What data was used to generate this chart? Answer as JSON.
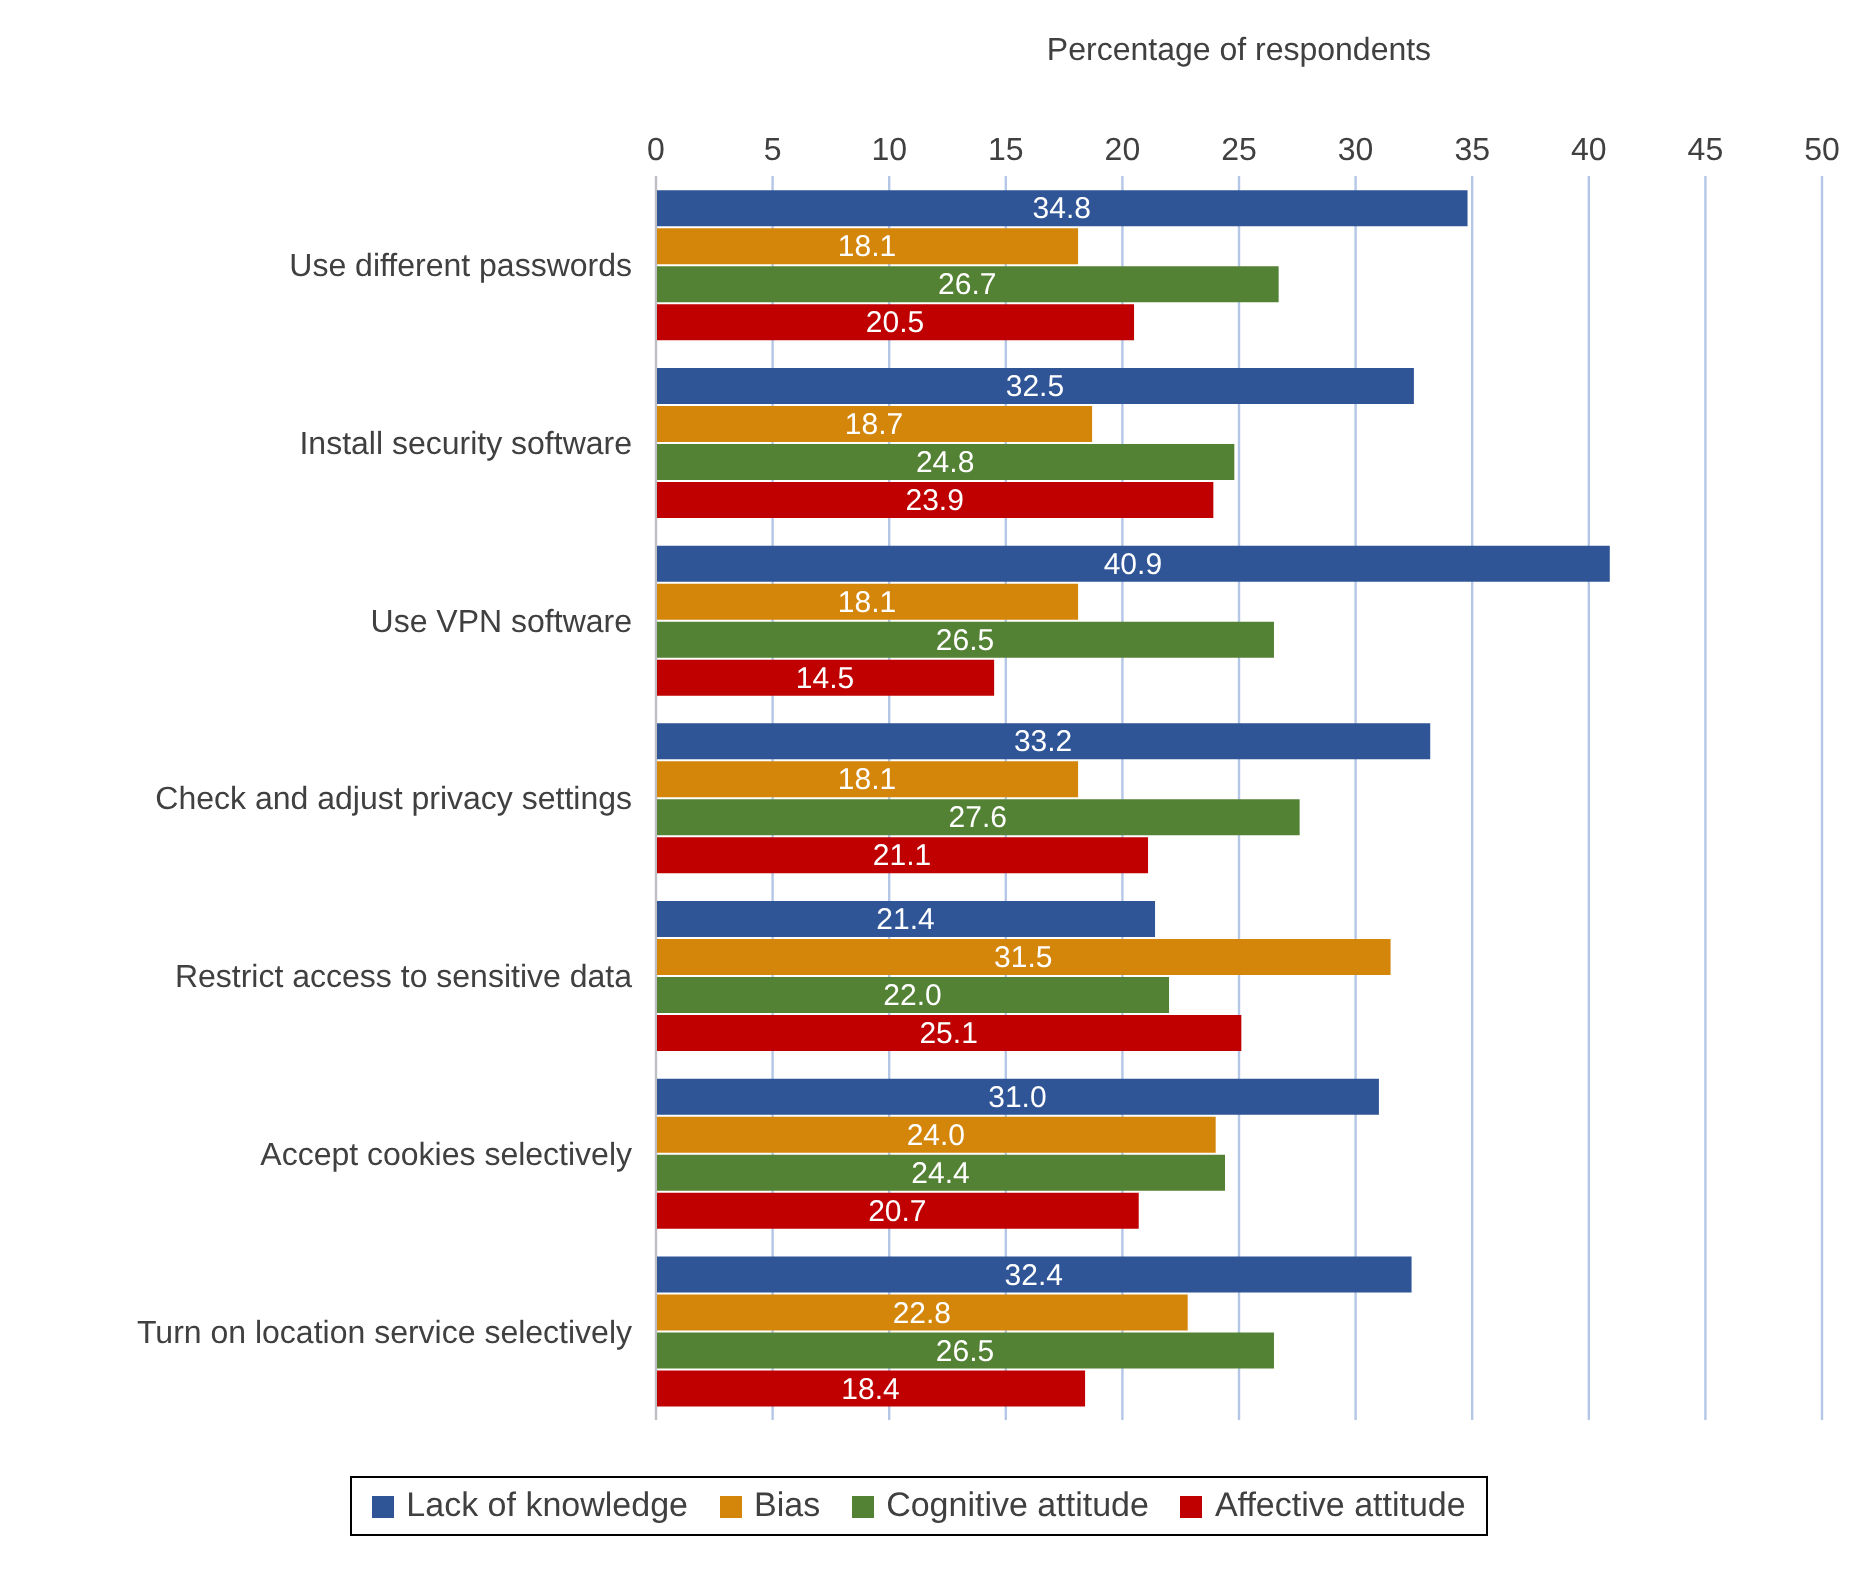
{
  "chart_data": {
    "type": "bar",
    "orientation": "horizontal",
    "xlabel": "Percentage of respondents",
    "categories": [
      "Use different passwords",
      "Install security software",
      "Use VPN software",
      "Check and adjust privacy settings",
      "Restrict access to sensitive data",
      "Accept cookies selectively",
      "Turn on location service selectively"
    ],
    "series": [
      {
        "name": "Lack of knowledge",
        "color": "#2f5597",
        "values": [
          34.8,
          32.5,
          40.9,
          33.2,
          21.4,
          31.0,
          32.4
        ]
      },
      {
        "name": "Bias",
        "color": "#d4860b",
        "values": [
          18.1,
          18.7,
          18.1,
          18.1,
          31.5,
          24.0,
          22.8
        ]
      },
      {
        "name": "Cognitive attitude",
        "color": "#548235",
        "values": [
          26.7,
          24.8,
          26.5,
          27.6,
          22.0,
          24.4,
          26.5
        ]
      },
      {
        "name": "Affective attitude",
        "color": "#c00000",
        "values": [
          20.5,
          23.9,
          14.5,
          21.1,
          25.1,
          20.7,
          18.4
        ]
      }
    ],
    "value_labels": [
      [
        "34.8",
        "32.5",
        "40.9",
        "33.2",
        "21.4",
        "31.0",
        "32.4"
      ],
      [
        "18.1",
        "18.7",
        "18.1",
        "18.1",
        "31.5",
        "24.0",
        "22.8"
      ],
      [
        "26.7",
        "24.8",
        "26.5",
        "27.6",
        "22.0",
        "24.4",
        "26.5"
      ],
      [
        "20.5",
        "23.9",
        "14.5",
        "21.1",
        "25.1",
        "20.7",
        "18.4"
      ]
    ],
    "xlim": [
      0,
      50
    ],
    "xticks": [
      0,
      5,
      10,
      15,
      20,
      25,
      30,
      35,
      40,
      45,
      50
    ],
    "grid": "x",
    "legend": "bottom"
  }
}
